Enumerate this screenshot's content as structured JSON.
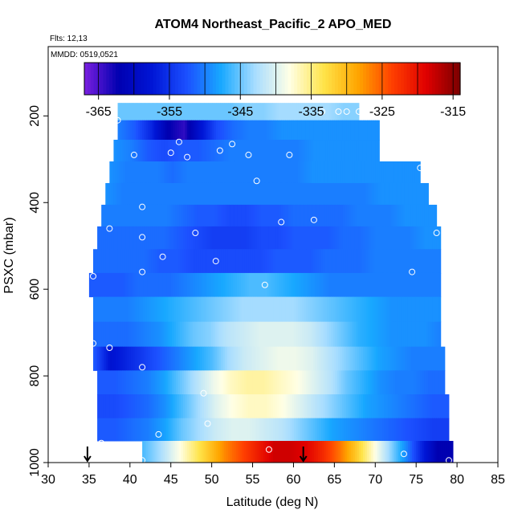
{
  "chart_data": {
    "type": "heatmap",
    "title": "ATOM4 Northeast_Pacific_2 APO_MED",
    "note_flights": "Flts: 12,13",
    "note_dates": "MMDD: 0519,0521",
    "xlabel": "Latitude (deg N)",
    "ylabel": "PSXC (mbar)",
    "xlim": [
      30,
      85
    ],
    "ylim": [
      1000,
      40
    ],
    "x_ticks": [
      30,
      35,
      40,
      45,
      50,
      55,
      60,
      65,
      70,
      75,
      80,
      85
    ],
    "y_ticks": [
      200,
      400,
      600,
      800,
      1000
    ],
    "grid": false,
    "colorbar": {
      "position": "top",
      "range": [
        -367,
        -314
      ],
      "ticks": [
        -365,
        -355,
        -345,
        -335,
        -325,
        -315
      ],
      "palette": [
        "#7b1fe0",
        "#0000b0",
        "#0016d6",
        "#1c50ff",
        "#18a8ff",
        "#a8ddff",
        "#ffffe6",
        "#ffe44a",
        "#ffa600",
        "#ff4000",
        "#e00000",
        "#7a0000"
      ]
    },
    "layers": [
      {
        "p": 190,
        "x0": 38.5,
        "x1": 68.0,
        "vals": [
          -345,
          -345,
          -345,
          -345,
          -345,
          -345,
          -345,
          -345,
          -344,
          -344,
          -343,
          -343,
          -343,
          -343,
          -344,
          -344
        ]
      },
      {
        "p": 230,
        "x0": 38.5,
        "x1": 70.5,
        "vals": [
          -350,
          -352,
          -356,
          -362,
          -364,
          -358,
          -353,
          -351,
          -350,
          -350,
          -349,
          -349,
          -349,
          -349,
          -349,
          -349,
          -349
        ]
      },
      {
        "p": 280,
        "x0": 38.0,
        "x1": 70.5,
        "vals": [
          -349,
          -350,
          -352,
          -353,
          -352,
          -352,
          -351,
          -350,
          -350,
          -350,
          -350,
          -350,
          -349,
          -349,
          -349,
          -349,
          -349
        ]
      },
      {
        "p": 330,
        "x0": 37.5,
        "x1": 75.5,
        "vals": [
          -349,
          -350,
          -350,
          -350,
          -351,
          -350,
          -350,
          -350,
          -350,
          -350,
          -350,
          -350,
          -350,
          -349,
          -349,
          -349,
          -349,
          -349,
          -349,
          -349,
          -349
        ]
      },
      {
        "p": 380,
        "x0": 37.0,
        "x1": 76.5,
        "vals": [
          -349,
          -350,
          -350,
          -350,
          -350,
          -350,
          -350,
          -350,
          -350,
          -350,
          -350,
          -350,
          -350,
          -350,
          -350,
          -350,
          -350,
          -349,
          -349,
          -349,
          -349
        ]
      },
      {
        "p": 430,
        "x0": 36.5,
        "x1": 77.5,
        "vals": [
          -350,
          -350,
          -350,
          -350,
          -350,
          -351,
          -352,
          -352,
          -353,
          -353,
          -352,
          -352,
          -351,
          -351,
          -351,
          -351,
          -350,
          -350,
          -350,
          -349,
          -349,
          -349
        ]
      },
      {
        "p": 480,
        "x0": 36.0,
        "x1": 78.0,
        "vals": [
          -351,
          -351,
          -351,
          -351,
          -351,
          -352,
          -353,
          -354,
          -354,
          -354,
          -353,
          -353,
          -352,
          -352,
          -352,
          -351,
          -351,
          -350,
          -350,
          -350,
          -349,
          -349
        ]
      },
      {
        "p": 535,
        "x0": 35.5,
        "x1": 78.0,
        "vals": [
          -351,
          -351,
          -351,
          -351,
          -352,
          -352,
          -353,
          -353,
          -353,
          -353,
          -353,
          -352,
          -352,
          -352,
          -351,
          -351,
          -351,
          -350,
          -350,
          -350,
          -350,
          -350
        ]
      },
      {
        "p": 590,
        "x0": 35.0,
        "x1": 78.0,
        "vals": [
          -352,
          -352,
          -352,
          -351,
          -351,
          -351,
          -350,
          -349,
          -348,
          -347,
          -346,
          -346,
          -347,
          -348,
          -349,
          -350,
          -350,
          -350,
          -350,
          -350,
          -350,
          -350,
          -350
        ]
      },
      {
        "p": 645,
        "x0": 35.5,
        "x1": 78.0,
        "vals": [
          -350,
          -350,
          -350,
          -349,
          -348,
          -347,
          -346,
          -345,
          -344,
          -343,
          -343,
          -343,
          -343,
          -344,
          -345,
          -346,
          -347,
          -348,
          -349,
          -349,
          -349,
          -349
        ]
      },
      {
        "p": 705,
        "x0": 35.5,
        "x1": 78.0,
        "vals": [
          -351,
          -351,
          -351,
          -350,
          -349,
          -347,
          -345,
          -344,
          -342,
          -341,
          -340,
          -340,
          -340,
          -341,
          -343,
          -345,
          -347,
          -348,
          -349,
          -349,
          -349,
          -350
        ]
      },
      {
        "p": 760,
        "x0": 35.5,
        "x1": 78.5,
        "vals": [
          -352,
          -358,
          -356,
          -354,
          -352,
          -350,
          -348,
          -346,
          -343,
          -341,
          -340,
          -339,
          -339,
          -340,
          -342,
          -344,
          -346,
          -348,
          -349,
          -350,
          -350,
          -350
        ]
      },
      {
        "p": 815,
        "x0": 36.0,
        "x1": 78.5,
        "vals": [
          -352,
          -352,
          -351,
          -350,
          -348,
          -345,
          -342,
          -339,
          -337,
          -336,
          -336,
          -337,
          -338,
          -340,
          -342,
          -345,
          -347,
          -349,
          -350,
          -350,
          -351,
          -351
        ]
      },
      {
        "p": 870,
        "x0": 36.0,
        "x1": 79.0,
        "vals": [
          -353,
          -353,
          -352,
          -351,
          -349,
          -346,
          -343,
          -340,
          -338,
          -337,
          -337,
          -338,
          -340,
          -342,
          -344,
          -346,
          -348,
          -349,
          -350,
          -351,
          -352,
          -352
        ]
      },
      {
        "p": 925,
        "x0": 36.0,
        "x1": 79.0,
        "vals": [
          -352,
          -352,
          -351,
          -350,
          -348,
          -345,
          -343,
          -341,
          -340,
          -340,
          -341,
          -342,
          -344,
          -346,
          -348,
          -349,
          -350,
          -351,
          -352,
          -353,
          -354,
          -354
        ]
      },
      {
        "p": 975,
        "x0": 41.5,
        "x1": 79.5,
        "vals": [
          -346,
          -343,
          -339,
          -335,
          -331,
          -327,
          -324,
          -321,
          -318,
          -318,
          -319,
          -322,
          -326,
          -331,
          -337,
          -343,
          -349,
          -356,
          -362,
          -362
        ]
      }
    ],
    "sample_points": [
      [
        38.5,
        210
      ],
      [
        41.5,
        410
      ],
      [
        41.5,
        480
      ],
      [
        41.5,
        560
      ],
      [
        37.5,
        460
      ],
      [
        40.5,
        290
      ],
      [
        45.0,
        285
      ],
      [
        47.0,
        295
      ],
      [
        46.0,
        260
      ],
      [
        51.0,
        280
      ],
      [
        52.5,
        265
      ],
      [
        54.5,
        290
      ],
      [
        59.5,
        290
      ],
      [
        55.5,
        350
      ],
      [
        58.5,
        445
      ],
      [
        62.5,
        440
      ],
      [
        48.0,
        470
      ],
      [
        44.0,
        525
      ],
      [
        50.5,
        535
      ],
      [
        56.5,
        590
      ],
      [
        35.5,
        570
      ],
      [
        74.5,
        560
      ],
      [
        77.5,
        470
      ],
      [
        75.5,
        320
      ],
      [
        63.5,
        190
      ],
      [
        65.5,
        190
      ],
      [
        66.5,
        190
      ],
      [
        68.0,
        190
      ],
      [
        35.5,
        725
      ],
      [
        37.5,
        735
      ],
      [
        41.5,
        780
      ],
      [
        49.0,
        840
      ],
      [
        49.5,
        910
      ],
      [
        43.5,
        935
      ],
      [
        36.5,
        955
      ],
      [
        57.0,
        970
      ],
      [
        73.5,
        980
      ],
      [
        79.0,
        995
      ],
      [
        41.5,
        995
      ]
    ],
    "markers": [
      {
        "label": "down-arrow",
        "lat": 34.8
      },
      {
        "label": "down-arrow",
        "lat": 61.2
      }
    ]
  }
}
